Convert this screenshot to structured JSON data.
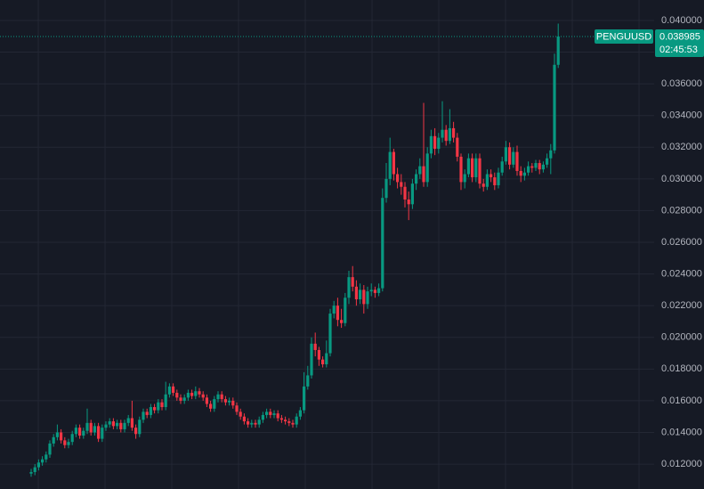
{
  "chart_data": {
    "type": "candlestick",
    "symbol": "PENGUUSD",
    "countdown": "02:45:53",
    "up_color": "#089981",
    "down_color": "#f23645",
    "grid": true,
    "ylim": [
      0.01043,
      0.04129
    ],
    "yticks": [
      {
        "value": 0.012,
        "label": "0.012000"
      },
      {
        "value": 0.014,
        "label": "0.014000"
      },
      {
        "value": 0.016,
        "label": "0.016000"
      },
      {
        "value": 0.018,
        "label": "0.018000"
      },
      {
        "value": 0.02,
        "label": "0.020000"
      },
      {
        "value": 0.022,
        "label": "0.022000"
      },
      {
        "value": 0.024,
        "label": "0.024000"
      },
      {
        "value": 0.026,
        "label": "0.026000"
      },
      {
        "value": 0.028,
        "label": "0.028000"
      },
      {
        "value": 0.03,
        "label": "0.030000"
      },
      {
        "value": 0.032,
        "label": "0.032000"
      },
      {
        "value": 0.034,
        "label": "0.034000"
      },
      {
        "value": 0.036,
        "label": "0.036000"
      },
      {
        "value": 0.038,
        "label": "0.038000"
      },
      {
        "value": 0.04,
        "label": "0.040000"
      }
    ],
    "open": [
      0.0114,
      0.0115,
      0.0118,
      0.0121,
      0.0123,
      0.0126,
      0.0133,
      0.0137,
      0.014,
      0.0135,
      0.0132,
      0.0134,
      0.0139,
      0.0143,
      0.0138,
      0.0141,
      0.0146,
      0.014,
      0.0144,
      0.0136,
      0.0143,
      0.0145,
      0.0147,
      0.0144,
      0.0146,
      0.0142,
      0.0146,
      0.0149,
      0.0143,
      0.0139,
      0.0148,
      0.0153,
      0.0151,
      0.0156,
      0.0154,
      0.0159,
      0.0156,
      0.0164,
      0.0169,
      0.0165,
      0.0162,
      0.016,
      0.0162,
      0.0165,
      0.0163,
      0.0166,
      0.0164,
      0.0162,
      0.0158,
      0.0155,
      0.0161,
      0.0164,
      0.0161,
      0.0159,
      0.016,
      0.0157,
      0.0153,
      0.015,
      0.0147,
      0.0145,
      0.0146,
      0.0145,
      0.0148,
      0.0151,
      0.0153,
      0.0151,
      0.0152,
      0.0149,
      0.0148,
      0.0147,
      0.0146,
      0.0145,
      0.015,
      0.0154,
      0.0169,
      0.0176,
      0.0196,
      0.0192,
      0.0186,
      0.0183,
      0.019,
      0.0215,
      0.022,
      0.0211,
      0.0209,
      0.0225,
      0.0238,
      0.0232,
      0.0224,
      0.023,
      0.0221,
      0.0229,
      0.023,
      0.0228,
      0.0231,
      0.0288,
      0.03,
      0.0317,
      0.0303,
      0.0298,
      0.0295,
      0.0287,
      0.0284,
      0.0297,
      0.0303,
      0.0308,
      0.0298,
      0.0316,
      0.0327,
      0.0319,
      0.0326,
      0.0331,
      0.0324,
      0.0332,
      0.0326,
      0.0314,
      0.0298,
      0.0303,
      0.0313,
      0.0301,
      0.0313,
      0.0297,
      0.0295,
      0.0303,
      0.0301,
      0.0296,
      0.0304,
      0.0311,
      0.032,
      0.0309,
      0.0317,
      0.0305,
      0.0302,
      0.0304,
      0.0308,
      0.0307,
      0.031,
      0.0306,
      0.0309,
      0.0313,
      0.0318,
      0.0372
    ],
    "high": [
      0.0117,
      0.012,
      0.0123,
      0.0125,
      0.0128,
      0.0135,
      0.0139,
      0.0145,
      0.0142,
      0.0137,
      0.0136,
      0.0141,
      0.0145,
      0.0145,
      0.0143,
      0.0155,
      0.0148,
      0.0146,
      0.0146,
      0.0145,
      0.0147,
      0.0149,
      0.0149,
      0.0148,
      0.0148,
      0.0148,
      0.0151,
      0.016,
      0.0145,
      0.015,
      0.0155,
      0.0155,
      0.0158,
      0.0158,
      0.0161,
      0.0161,
      0.0172,
      0.0171,
      0.0171,
      0.0167,
      0.0164,
      0.0164,
      0.0167,
      0.0167,
      0.0169,
      0.0168,
      0.0166,
      0.0164,
      0.016,
      0.0163,
      0.0166,
      0.0166,
      0.0163,
      0.0162,
      0.0162,
      0.0159,
      0.0155,
      0.0152,
      0.0149,
      0.0148,
      0.0148,
      0.015,
      0.0153,
      0.0155,
      0.0155,
      0.0154,
      0.0154,
      0.0151,
      0.015,
      0.0149,
      0.0148,
      0.0152,
      0.0156,
      0.0178,
      0.0182,
      0.02,
      0.0203,
      0.0194,
      0.0188,
      0.0198,
      0.0218,
      0.0223,
      0.0225,
      0.0218,
      0.0228,
      0.0242,
      0.0245,
      0.0236,
      0.0234,
      0.0233,
      0.0232,
      0.0234,
      0.0232,
      0.0234,
      0.0294,
      0.031,
      0.0326,
      0.0319,
      0.0307,
      0.0303,
      0.0298,
      0.0292,
      0.03,
      0.0306,
      0.0313,
      0.0348,
      0.032,
      0.0331,
      0.0332,
      0.0329,
      0.0349,
      0.0334,
      0.0344,
      0.0336,
      0.0329,
      0.0316,
      0.0306,
      0.0316,
      0.0316,
      0.0316,
      0.0316,
      0.03,
      0.0306,
      0.0306,
      0.0304,
      0.0307,
      0.0314,
      0.0324,
      0.0323,
      0.032,
      0.0321,
      0.0308,
      0.0307,
      0.0311,
      0.031,
      0.0312,
      0.0312,
      0.0311,
      0.0316,
      0.0322,
      0.0379,
      0.0398
    ],
    "low": [
      0.0112,
      0.0113,
      0.0116,
      0.0119,
      0.0121,
      0.0124,
      0.0131,
      0.0135,
      0.0133,
      0.013,
      0.013,
      0.0132,
      0.0137,
      0.0136,
      0.0136,
      0.0139,
      0.0138,
      0.0138,
      0.0134,
      0.0134,
      0.0141,
      0.0143,
      0.0142,
      0.0142,
      0.014,
      0.014,
      0.0144,
      0.0141,
      0.0136,
      0.0137,
      0.0146,
      0.0149,
      0.0149,
      0.0152,
      0.0152,
      0.0154,
      0.0154,
      0.0162,
      0.0163,
      0.016,
      0.0158,
      0.0158,
      0.016,
      0.0161,
      0.0161,
      0.0162,
      0.016,
      0.0156,
      0.0153,
      0.0153,
      0.0159,
      0.0159,
      0.0157,
      0.0157,
      0.0155,
      0.0151,
      0.0148,
      0.0145,
      0.0143,
      0.0143,
      0.0143,
      0.0143,
      0.0146,
      0.0149,
      0.0149,
      0.0149,
      0.0147,
      0.0146,
      0.0145,
      0.0144,
      0.0143,
      0.0143,
      0.0148,
      0.0152,
      0.0167,
      0.0174,
      0.0188,
      0.0182,
      0.0181,
      0.0181,
      0.0188,
      0.0212,
      0.0207,
      0.0206,
      0.0207,
      0.0221,
      0.0229,
      0.022,
      0.0221,
      0.0215,
      0.0218,
      0.0226,
      0.0225,
      0.0226,
      0.0229,
      0.0285,
      0.0296,
      0.0299,
      0.0294,
      0.029,
      0.0282,
      0.0274,
      0.0281,
      0.0293,
      0.03,
      0.0295,
      0.0295,
      0.0313,
      0.0315,
      0.0316,
      0.0323,
      0.0321,
      0.0322,
      0.0323,
      0.0311,
      0.0293,
      0.0294,
      0.0301,
      0.0298,
      0.0298,
      0.0294,
      0.0292,
      0.0293,
      0.0298,
      0.0293,
      0.0294,
      0.0302,
      0.0309,
      0.0306,
      0.0307,
      0.0302,
      0.0298,
      0.0299,
      0.0302,
      0.0304,
      0.0305,
      0.0303,
      0.0304,
      0.0307,
      0.0303,
      0.0316,
      0.037
    ],
    "close": [
      0.0115,
      0.0118,
      0.0121,
      0.0123,
      0.0126,
      0.0133,
      0.0137,
      0.014,
      0.0135,
      0.0132,
      0.0134,
      0.0139,
      0.0143,
      0.0138,
      0.0141,
      0.0146,
      0.014,
      0.0144,
      0.0136,
      0.0143,
      0.0145,
      0.0147,
      0.0144,
      0.0146,
      0.0142,
      0.0146,
      0.0149,
      0.0143,
      0.0139,
      0.0148,
      0.0153,
      0.0151,
      0.0156,
      0.0154,
      0.0159,
      0.0156,
      0.0164,
      0.0169,
      0.0165,
      0.0162,
      0.016,
      0.0162,
      0.0165,
      0.0163,
      0.0166,
      0.0164,
      0.0162,
      0.0158,
      0.0155,
      0.0161,
      0.0164,
      0.0161,
      0.0159,
      0.016,
      0.0157,
      0.0153,
      0.015,
      0.0147,
      0.0145,
      0.0146,
      0.0145,
      0.0148,
      0.0151,
      0.0153,
      0.0151,
      0.0152,
      0.0149,
      0.0148,
      0.0147,
      0.0146,
      0.0145,
      0.015,
      0.0154,
      0.0169,
      0.0176,
      0.0196,
      0.0192,
      0.0186,
      0.0183,
      0.019,
      0.0215,
      0.022,
      0.0211,
      0.0209,
      0.0225,
      0.0238,
      0.0232,
      0.0224,
      0.023,
      0.0221,
      0.0229,
      0.023,
      0.0228,
      0.0231,
      0.0288,
      0.03,
      0.0317,
      0.0303,
      0.0298,
      0.0295,
      0.0287,
      0.0284,
      0.0297,
      0.0303,
      0.0308,
      0.0298,
      0.0316,
      0.0327,
      0.0319,
      0.0326,
      0.0331,
      0.0324,
      0.0332,
      0.0326,
      0.0314,
      0.0298,
      0.0303,
      0.0313,
      0.0301,
      0.0313,
      0.0297,
      0.0295,
      0.0303,
      0.0301,
      0.0296,
      0.0304,
      0.0311,
      0.032,
      0.0309,
      0.0317,
      0.0305,
      0.0302,
      0.0304,
      0.0308,
      0.0307,
      0.031,
      0.0306,
      0.0309,
      0.0313,
      0.0318,
      0.0372,
      0.038985
    ]
  }
}
